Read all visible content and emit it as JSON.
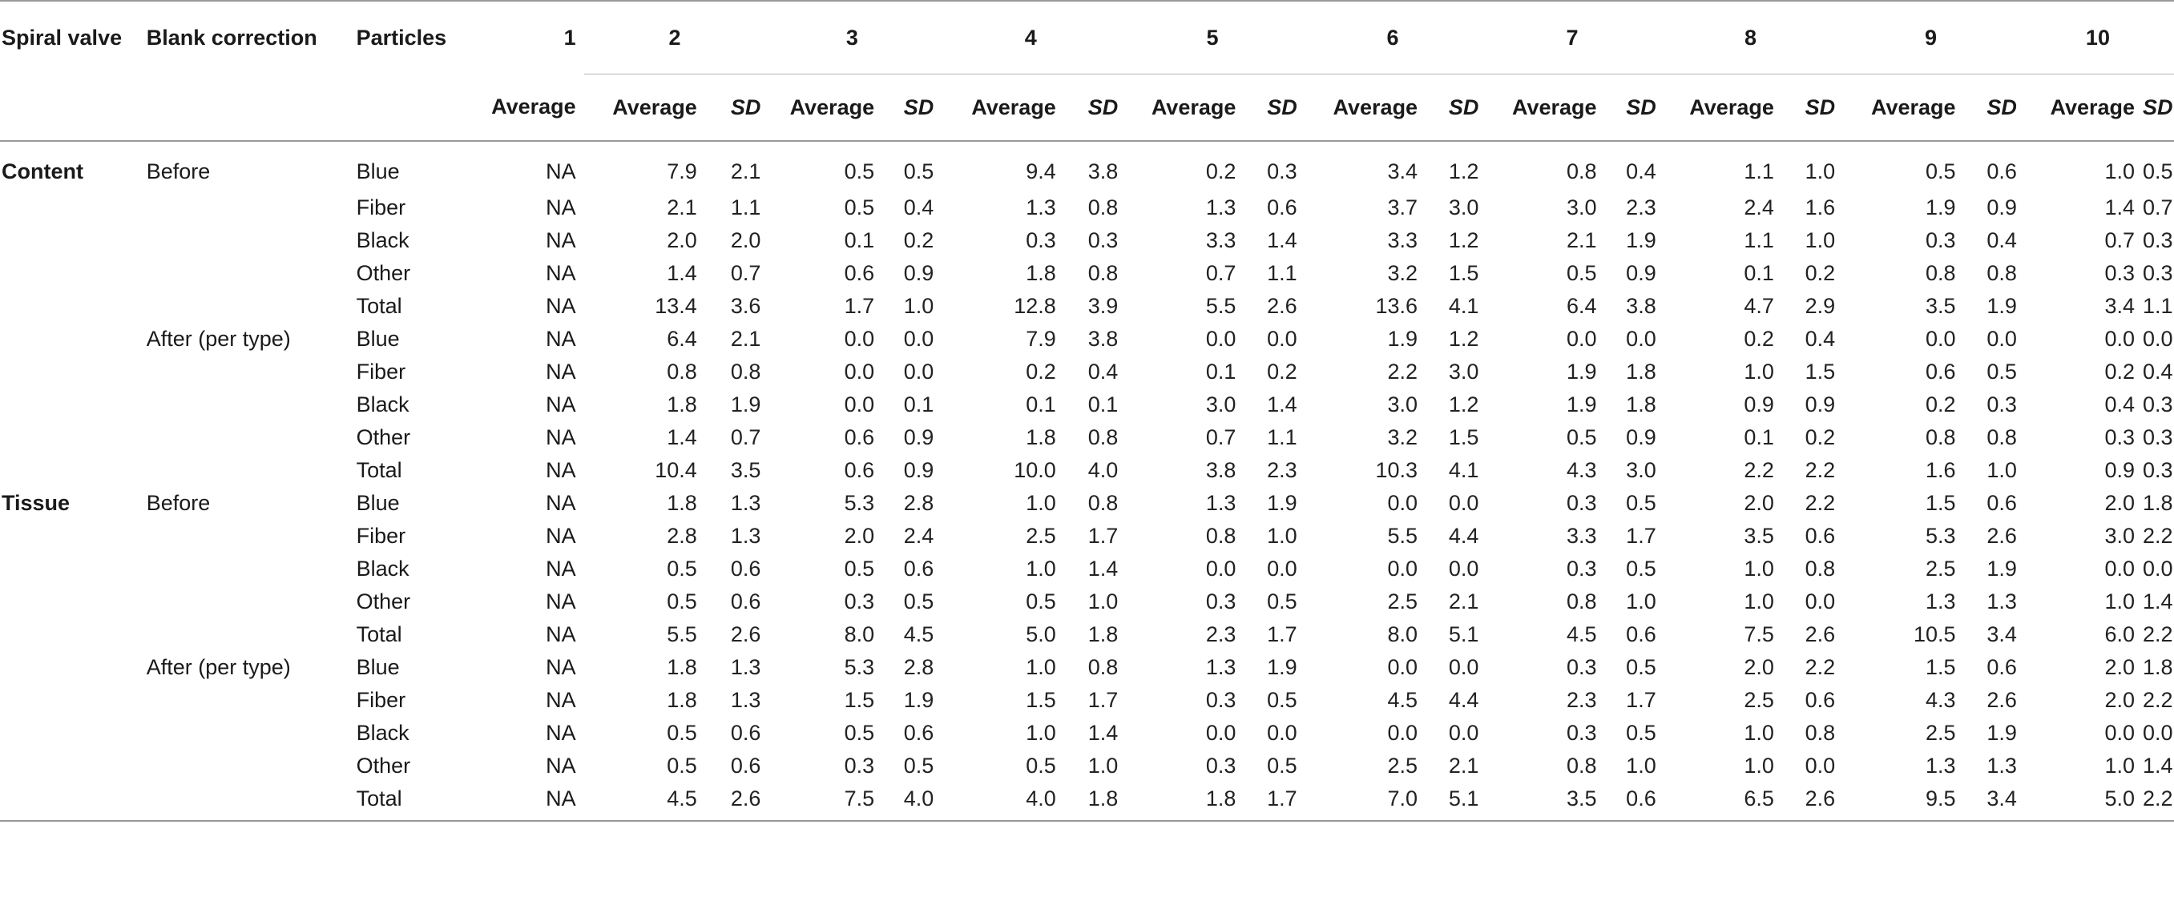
{
  "headers": {
    "spiral_valve": "Spiral valve",
    "blank_correction": "Blank correction",
    "particles": "Particles",
    "groups": [
      "1",
      "2",
      "3",
      "4",
      "5",
      "6",
      "7",
      "8",
      "9",
      "10"
    ],
    "average": "Average",
    "sd": "SD"
  },
  "rows": [
    {
      "spiral": "Content",
      "blank": "Before",
      "particle": "Blue",
      "g1": "NA",
      "vals": [
        "7.9",
        "2.1",
        "0.5",
        "0.5",
        "9.4",
        "3.8",
        "0.2",
        "0.3",
        "3.4",
        "1.2",
        "0.8",
        "0.4",
        "1.1",
        "1.0",
        "0.5",
        "0.6",
        "1.0",
        "0.5"
      ]
    },
    {
      "spiral": "",
      "blank": "",
      "particle": "Fiber",
      "g1": "NA",
      "vals": [
        "2.1",
        "1.1",
        "0.5",
        "0.4",
        "1.3",
        "0.8",
        "1.3",
        "0.6",
        "3.7",
        "3.0",
        "3.0",
        "2.3",
        "2.4",
        "1.6",
        "1.9",
        "0.9",
        "1.4",
        "0.7"
      ]
    },
    {
      "spiral": "",
      "blank": "",
      "particle": "Black",
      "g1": "NA",
      "vals": [
        "2.0",
        "2.0",
        "0.1",
        "0.2",
        "0.3",
        "0.3",
        "3.3",
        "1.4",
        "3.3",
        "1.2",
        "2.1",
        "1.9",
        "1.1",
        "1.0",
        "0.3",
        "0.4",
        "0.7",
        "0.3"
      ]
    },
    {
      "spiral": "",
      "blank": "",
      "particle": "Other",
      "g1": "NA",
      "vals": [
        "1.4",
        "0.7",
        "0.6",
        "0.9",
        "1.8",
        "0.8",
        "0.7",
        "1.1",
        "3.2",
        "1.5",
        "0.5",
        "0.9",
        "0.1",
        "0.2",
        "0.8",
        "0.8",
        "0.3",
        "0.3"
      ]
    },
    {
      "spiral": "",
      "blank": "",
      "particle": "Total",
      "g1": "NA",
      "vals": [
        "13.4",
        "3.6",
        "1.7",
        "1.0",
        "12.8",
        "3.9",
        "5.5",
        "2.6",
        "13.6",
        "4.1",
        "6.4",
        "3.8",
        "4.7",
        "2.9",
        "3.5",
        "1.9",
        "3.4",
        "1.1"
      ]
    },
    {
      "spiral": "",
      "blank": "After (per type)",
      "particle": "Blue",
      "g1": "NA",
      "vals": [
        "6.4",
        "2.1",
        "0.0",
        "0.0",
        "7.9",
        "3.8",
        "0.0",
        "0.0",
        "1.9",
        "1.2",
        "0.0",
        "0.0",
        "0.2",
        "0.4",
        "0.0",
        "0.0",
        "0.0",
        "0.0"
      ]
    },
    {
      "spiral": "",
      "blank": "",
      "particle": "Fiber",
      "g1": "NA",
      "vals": [
        "0.8",
        "0.8",
        "0.0",
        "0.0",
        "0.2",
        "0.4",
        "0.1",
        "0.2",
        "2.2",
        "3.0",
        "1.9",
        "1.8",
        "1.0",
        "1.5",
        "0.6",
        "0.5",
        "0.2",
        "0.4"
      ]
    },
    {
      "spiral": "",
      "blank": "",
      "particle": "Black",
      "g1": "NA",
      "vals": [
        "1.8",
        "1.9",
        "0.0",
        "0.1",
        "0.1",
        "0.1",
        "3.0",
        "1.4",
        "3.0",
        "1.2",
        "1.9",
        "1.8",
        "0.9",
        "0.9",
        "0.2",
        "0.3",
        "0.4",
        "0.3"
      ]
    },
    {
      "spiral": "",
      "blank": "",
      "particle": "Other",
      "g1": "NA",
      "vals": [
        "1.4",
        "0.7",
        "0.6",
        "0.9",
        "1.8",
        "0.8",
        "0.7",
        "1.1",
        "3.2",
        "1.5",
        "0.5",
        "0.9",
        "0.1",
        "0.2",
        "0.8",
        "0.8",
        "0.3",
        "0.3"
      ]
    },
    {
      "spiral": "",
      "blank": "",
      "particle": "Total",
      "g1": "NA",
      "vals": [
        "10.4",
        "3.5",
        "0.6",
        "0.9",
        "10.0",
        "4.0",
        "3.8",
        "2.3",
        "10.3",
        "4.1",
        "4.3",
        "3.0",
        "2.2",
        "2.2",
        "1.6",
        "1.0",
        "0.9",
        "0.3"
      ]
    },
    {
      "spiral": "Tissue",
      "blank": "Before",
      "particle": "Blue",
      "g1": "NA",
      "vals": [
        "1.8",
        "1.3",
        "5.3",
        "2.8",
        "1.0",
        "0.8",
        "1.3",
        "1.9",
        "0.0",
        "0.0",
        "0.3",
        "0.5",
        "2.0",
        "2.2",
        "1.5",
        "0.6",
        "2.0",
        "1.8"
      ]
    },
    {
      "spiral": "",
      "blank": "",
      "particle": "Fiber",
      "g1": "NA",
      "vals": [
        "2.8",
        "1.3",
        "2.0",
        "2.4",
        "2.5",
        "1.7",
        "0.8",
        "1.0",
        "5.5",
        "4.4",
        "3.3",
        "1.7",
        "3.5",
        "0.6",
        "5.3",
        "2.6",
        "3.0",
        "2.2"
      ]
    },
    {
      "spiral": "",
      "blank": "",
      "particle": "Black",
      "g1": "NA",
      "vals": [
        "0.5",
        "0.6",
        "0.5",
        "0.6",
        "1.0",
        "1.4",
        "0.0",
        "0.0",
        "0.0",
        "0.0",
        "0.3",
        "0.5",
        "1.0",
        "0.8",
        "2.5",
        "1.9",
        "0.0",
        "0.0"
      ]
    },
    {
      "spiral": "",
      "blank": "",
      "particle": "Other",
      "g1": "NA",
      "vals": [
        "0.5",
        "0.6",
        "0.3",
        "0.5",
        "0.5",
        "1.0",
        "0.3",
        "0.5",
        "2.5",
        "2.1",
        "0.8",
        "1.0",
        "1.0",
        "0.0",
        "1.3",
        "1.3",
        "1.0",
        "1.4"
      ]
    },
    {
      "spiral": "",
      "blank": "",
      "particle": "Total",
      "g1": "NA",
      "vals": [
        "5.5",
        "2.6",
        "8.0",
        "4.5",
        "5.0",
        "1.8",
        "2.3",
        "1.7",
        "8.0",
        "5.1",
        "4.5",
        "0.6",
        "7.5",
        "2.6",
        "10.5",
        "3.4",
        "6.0",
        "2.2"
      ]
    },
    {
      "spiral": "",
      "blank": "After (per type)",
      "particle": "Blue",
      "g1": "NA",
      "vals": [
        "1.8",
        "1.3",
        "5.3",
        "2.8",
        "1.0",
        "0.8",
        "1.3",
        "1.9",
        "0.0",
        "0.0",
        "0.3",
        "0.5",
        "2.0",
        "2.2",
        "1.5",
        "0.6",
        "2.0",
        "1.8"
      ]
    },
    {
      "spiral": "",
      "blank": "",
      "particle": "Fiber",
      "g1": "NA",
      "vals": [
        "1.8",
        "1.3",
        "1.5",
        "1.9",
        "1.5",
        "1.7",
        "0.3",
        "0.5",
        "4.5",
        "4.4",
        "2.3",
        "1.7",
        "2.5",
        "0.6",
        "4.3",
        "2.6",
        "2.0",
        "2.2"
      ]
    },
    {
      "spiral": "",
      "blank": "",
      "particle": "Black",
      "g1": "NA",
      "vals": [
        "0.5",
        "0.6",
        "0.5",
        "0.6",
        "1.0",
        "1.4",
        "0.0",
        "0.0",
        "0.0",
        "0.0",
        "0.3",
        "0.5",
        "1.0",
        "0.8",
        "2.5",
        "1.9",
        "0.0",
        "0.0"
      ]
    },
    {
      "spiral": "",
      "blank": "",
      "particle": "Other",
      "g1": "NA",
      "vals": [
        "0.5",
        "0.6",
        "0.3",
        "0.5",
        "0.5",
        "1.0",
        "0.3",
        "0.5",
        "2.5",
        "2.1",
        "0.8",
        "1.0",
        "1.0",
        "0.0",
        "1.3",
        "1.3",
        "1.0",
        "1.4"
      ]
    },
    {
      "spiral": "",
      "blank": "",
      "particle": "Total",
      "g1": "NA",
      "vals": [
        "4.5",
        "2.6",
        "7.5",
        "4.0",
        "4.0",
        "1.8",
        "1.8",
        "1.7",
        "7.0",
        "5.1",
        "3.5",
        "0.6",
        "6.5",
        "2.6",
        "9.5",
        "3.4",
        "5.0",
        "2.2"
      ]
    }
  ]
}
